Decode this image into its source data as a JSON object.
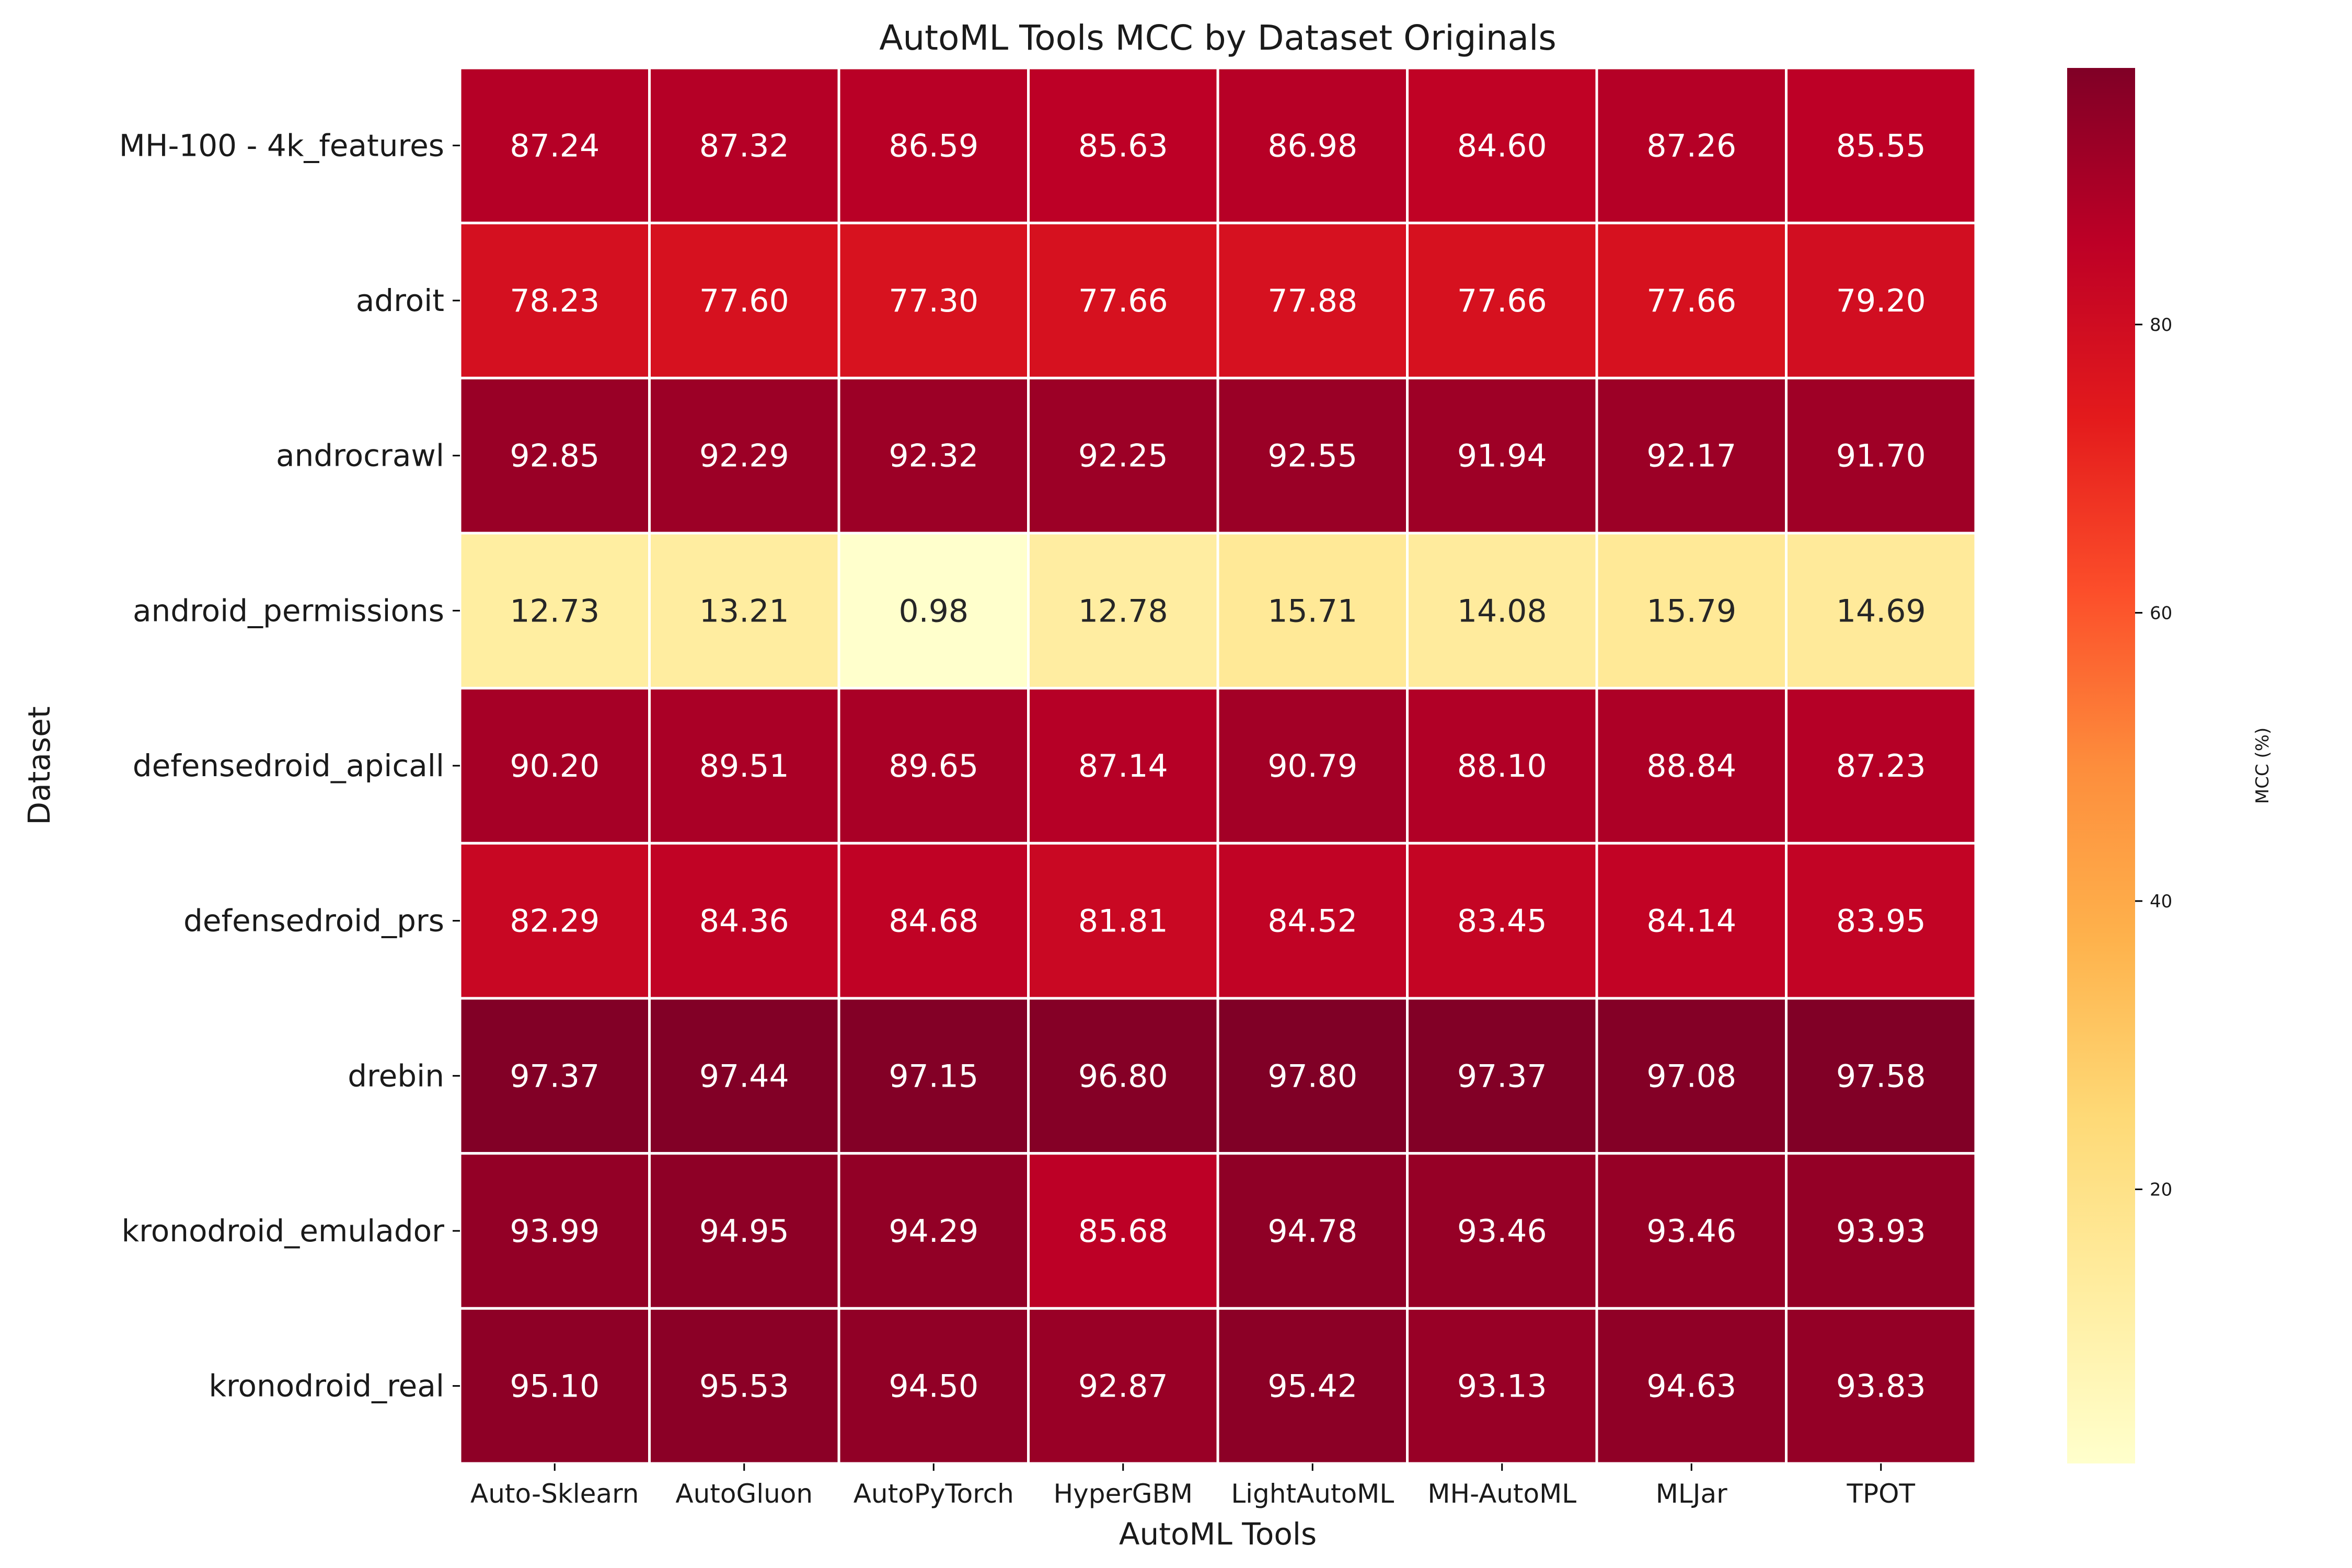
{
  "chart_data": {
    "type": "heatmap",
    "title": "AutoML Tools MCC by Dataset Originals",
    "xlabel": "AutoML Tools",
    "ylabel": "Dataset",
    "columns": [
      "Auto-Sklearn",
      "AutoGluon",
      "AutoPyTorch",
      "HyperGBM",
      "LightAutoML",
      "MH-AutoML",
      "MLJar",
      "TPOT"
    ],
    "rows": [
      "MH-100 - 4k_features",
      "adroit",
      "androcrawl",
      "android_permissions",
      "defensedroid_apicall",
      "defensedroid_prs",
      "drebin",
      "kronodroid_emulador",
      "kronodroid_real"
    ],
    "values": [
      [
        87.24,
        87.32,
        86.59,
        85.63,
        86.98,
        84.6,
        87.26,
        85.55
      ],
      [
        78.23,
        77.6,
        77.3,
        77.66,
        77.88,
        77.66,
        77.66,
        79.2
      ],
      [
        92.85,
        92.29,
        92.32,
        92.25,
        92.55,
        91.94,
        92.17,
        91.7
      ],
      [
        12.73,
        13.21,
        0.98,
        12.78,
        15.71,
        14.08,
        15.79,
        14.69
      ],
      [
        90.2,
        89.51,
        89.65,
        87.14,
        90.79,
        88.1,
        88.84,
        87.23
      ],
      [
        82.29,
        84.36,
        84.68,
        81.81,
        84.52,
        83.45,
        84.14,
        83.95
      ],
      [
        97.37,
        97.44,
        97.15,
        96.8,
        97.8,
        97.37,
        97.08,
        97.58
      ],
      [
        93.99,
        94.95,
        94.29,
        85.68,
        94.78,
        93.46,
        93.46,
        93.93
      ],
      [
        95.1,
        95.53,
        94.5,
        92.87,
        95.42,
        93.13,
        94.63,
        93.83
      ]
    ],
    "value_format": "2 decimals",
    "colormap": "YlOrRd",
    "vmin": 0.98,
    "vmax": 97.8,
    "colorbar": {
      "label": "MCC (%)",
      "ticks": [
        20,
        40,
        60,
        80
      ],
      "placement": "right"
    },
    "grid": "white cell borders"
  }
}
